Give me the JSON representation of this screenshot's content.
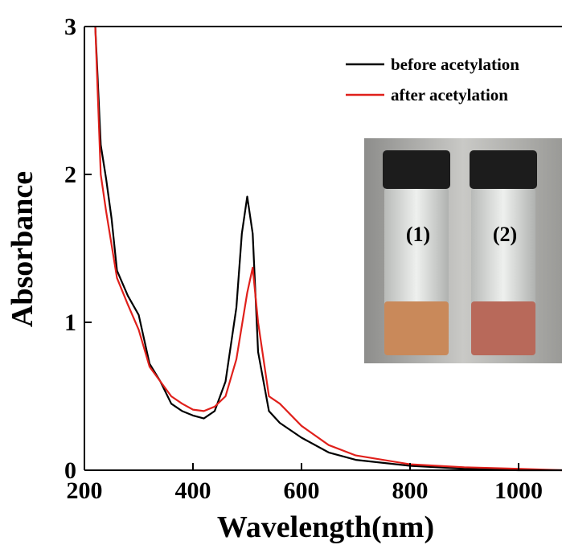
{
  "chart_data": {
    "type": "line",
    "x_label": "Wavelength(nm)",
    "y_label": "Absorbance",
    "xlim": [
      200,
      1080
    ],
    "ylim": [
      0,
      3
    ],
    "xticks": [
      200,
      400,
      600,
      800,
      1000
    ],
    "yticks": [
      0,
      1,
      2,
      3
    ],
    "legend_position": "upper right",
    "annotations": [
      "(1)",
      "(2)"
    ],
    "series": [
      {
        "name": "before acetylation",
        "color": "#000000",
        "x": [
          220,
          230,
          240,
          250,
          260,
          280,
          300,
          320,
          340,
          360,
          380,
          400,
          420,
          440,
          460,
          480,
          490,
          500,
          510,
          520,
          540,
          560,
          600,
          650,
          700,
          800,
          900,
          1000,
          1080
        ],
        "values": [
          3.0,
          2.2,
          1.97,
          1.7,
          1.35,
          1.18,
          1.05,
          0.72,
          0.6,
          0.45,
          0.4,
          0.37,
          0.35,
          0.4,
          0.6,
          1.1,
          1.6,
          1.85,
          1.6,
          0.8,
          0.4,
          0.32,
          0.22,
          0.12,
          0.07,
          0.03,
          0.01,
          0.0,
          0.0
        ]
      },
      {
        "name": "after acetylation",
        "color": "#e0201b",
        "x": [
          220,
          230,
          240,
          260,
          280,
          300,
          320,
          340,
          360,
          380,
          400,
          420,
          440,
          460,
          480,
          500,
          510,
          520,
          540,
          560,
          600,
          650,
          700,
          800,
          900,
          1000,
          1080
        ],
        "values": [
          3.0,
          2.0,
          1.75,
          1.3,
          1.12,
          0.95,
          0.7,
          0.6,
          0.5,
          0.45,
          0.41,
          0.4,
          0.43,
          0.5,
          0.75,
          1.2,
          1.37,
          1.0,
          0.5,
          0.45,
          0.3,
          0.17,
          0.1,
          0.04,
          0.02,
          0.01,
          0.0
        ]
      }
    ]
  }
}
